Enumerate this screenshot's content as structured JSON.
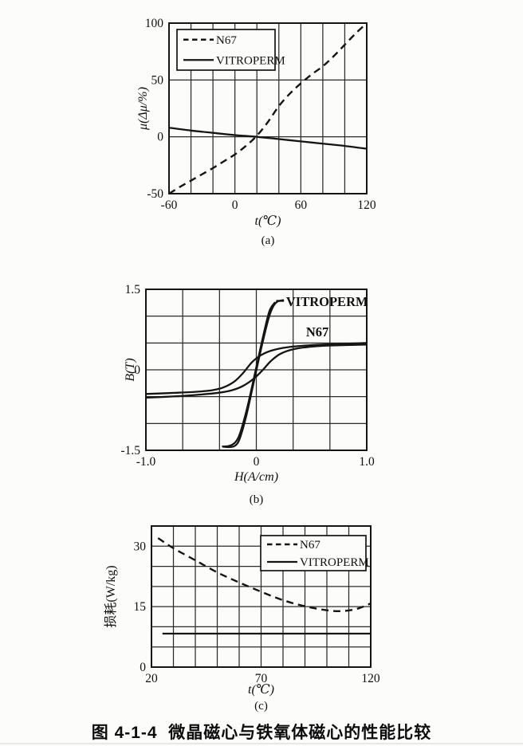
{
  "page": {
    "caption": "图 4-1-4  微晶磁心与铁氧体磁心的性能比较"
  },
  "colors": {
    "ink": "#151515",
    "background": "#fcfcfa"
  },
  "chart_data": [
    {
      "id": "a",
      "type": "line",
      "sublabel": "(a)",
      "xlabel": "t(℃)",
      "ylabel": "μ(Δμ/%)",
      "xlim": [
        -60,
        120
      ],
      "ylim": [
        -50,
        100
      ],
      "xgrid_step": 20,
      "ygrid_step": 50,
      "grid": true,
      "xticks": [
        {
          "v": -60,
          "label": "-60"
        },
        {
          "v": 0,
          "label": "0"
        },
        {
          "v": 60,
          "label": "60"
        },
        {
          "v": 120,
          "label": "120"
        }
      ],
      "yticks": [
        {
          "v": -50,
          "label": "-50"
        },
        {
          "v": 0,
          "label": "0"
        },
        {
          "v": 50,
          "label": "50"
        },
        {
          "v": 100,
          "label": "100"
        }
      ],
      "legend": {
        "position": "top-left",
        "entries": [
          {
            "name": "N67",
            "dash": true
          },
          {
            "name": "VITROPERM",
            "dash": false
          }
        ]
      },
      "series": [
        {
          "name": "N67",
          "dash": true,
          "points": [
            [
              -60,
              -50
            ],
            [
              -50,
              -44
            ],
            [
              -40,
              -38.5
            ],
            [
              -30,
              -33
            ],
            [
              -20,
              -27.5
            ],
            [
              -10,
              -21.5
            ],
            [
              0,
              -15.5
            ],
            [
              10,
              -8
            ],
            [
              20,
              1
            ],
            [
              30,
              13
            ],
            [
              40,
              27
            ],
            [
              50,
              38
            ],
            [
              60,
              47
            ],
            [
              70,
              55
            ],
            [
              80,
              62
            ],
            [
              90,
              71
            ],
            [
              100,
              81
            ],
            [
              110,
              91
            ],
            [
              120,
              100
            ]
          ]
        },
        {
          "name": "VITROPERM",
          "dash": false,
          "points": [
            [
              -60,
              8
            ],
            [
              -40,
              5.5
            ],
            [
              -20,
              3.5
            ],
            [
              0,
              1.5
            ],
            [
              20,
              0
            ],
            [
              40,
              -2
            ],
            [
              60,
              -4
            ],
            [
              80,
              -6
            ],
            [
              100,
              -8
            ],
            [
              120,
              -10.5
            ]
          ]
        }
      ]
    },
    {
      "id": "b",
      "type": "line",
      "sublabel": "(b)",
      "xlabel": "H(A/cm)",
      "ylabel": "B(T)",
      "xlim": [
        -1.0,
        1.0
      ],
      "ylim": [
        -1.5,
        1.5
      ],
      "xgrid_step": 0.3333333,
      "ygrid_step": 0.5,
      "grid": true,
      "xticks": [
        {
          "v": -1.0,
          "label": "-1.0"
        },
        {
          "v": 0,
          "label": "0"
        },
        {
          "v": 1.0,
          "label": "1.0"
        }
      ],
      "yticks": [
        {
          "v": -1.5,
          "label": "-1.5"
        },
        {
          "v": 0,
          "label": "0"
        },
        {
          "v": 1.5,
          "label": "1.5"
        }
      ],
      "annotations": [
        {
          "text": "VITROPERM",
          "x": 0.27,
          "y": 1.26,
          "leader": [
            0.18,
            1.285,
            0.25,
            1.285
          ]
        },
        {
          "text": "N67",
          "x": 0.45,
          "y": 0.7
        }
      ],
      "series": [
        {
          "name": "VITROPERM",
          "dash": false,
          "points": [
            [
              -0.31,
              -1.43
            ],
            [
              -0.24,
              -1.44
            ],
            [
              -0.19,
              -1.41
            ],
            [
              -0.15,
              -1.28
            ],
            [
              -0.09,
              -0.85
            ],
            [
              -0.02,
              -0.2
            ],
            [
              0.05,
              0.45
            ],
            [
              0.11,
              0.95
            ],
            [
              0.15,
              1.17
            ],
            [
              0.19,
              1.27
            ],
            [
              0.25,
              1.3
            ]
          ]
        },
        {
          "name": "VITROPERM",
          "dash": false,
          "points": [
            [
              0.17,
              1.26
            ],
            [
              0.12,
              1.1
            ],
            [
              0.07,
              0.7
            ],
            [
              0,
              0.05
            ],
            [
              -0.07,
              -0.6
            ],
            [
              -0.12,
              -1.0
            ],
            [
              -0.16,
              -1.25
            ],
            [
              -0.2,
              -1.37
            ],
            [
              -0.25,
              -1.42
            ],
            [
              -0.31,
              -1.43
            ]
          ]
        },
        {
          "name": "N67",
          "dash": false,
          "points": [
            [
              -1.0,
              -0.45
            ],
            [
              -0.75,
              -0.43
            ],
            [
              -0.55,
              -0.41
            ],
            [
              -0.4,
              -0.38
            ],
            [
              -0.3,
              -0.33
            ],
            [
              -0.2,
              -0.22
            ],
            [
              -0.12,
              -0.06
            ],
            [
              -0.04,
              0.14
            ],
            [
              0.04,
              0.27
            ],
            [
              0.14,
              0.36
            ],
            [
              0.28,
              0.42
            ],
            [
              0.5,
              0.46
            ],
            [
              0.75,
              0.48
            ],
            [
              1.0,
              0.5
            ]
          ]
        },
        {
          "name": "N67",
          "dash": false,
          "points": [
            [
              -1.0,
              -0.52
            ],
            [
              -0.7,
              -0.49
            ],
            [
              -0.5,
              -0.46
            ],
            [
              -0.35,
              -0.43
            ],
            [
              -0.22,
              -0.38
            ],
            [
              -0.12,
              -0.3
            ],
            [
              -0.02,
              -0.16
            ],
            [
              0.06,
              0
            ],
            [
              0.13,
              0.16
            ],
            [
              0.22,
              0.3
            ],
            [
              0.35,
              0.39
            ],
            [
              0.55,
              0.44
            ],
            [
              0.8,
              0.46
            ],
            [
              1.0,
              0.47
            ]
          ]
        }
      ]
    },
    {
      "id": "c",
      "type": "line",
      "sublabel": "(c)",
      "xlabel": "t(℃)",
      "ylabel": "损耗(W/kg)",
      "xlim": [
        20,
        120
      ],
      "ylim": [
        0,
        35
      ],
      "xgrid_step": 10,
      "ygrid_step": 5,
      "grid": true,
      "xticks": [
        {
          "v": 20,
          "label": "20"
        },
        {
          "v": 70,
          "label": "70"
        },
        {
          "v": 120,
          "label": "120"
        }
      ],
      "yticks": [
        {
          "v": 0,
          "label": "0"
        },
        {
          "v": 15,
          "label": "15"
        },
        {
          "v": 30,
          "label": "30"
        }
      ],
      "legend": {
        "position": "top-right",
        "entries": [
          {
            "name": "N67",
            "dash": true
          },
          {
            "name": "VITROPERM",
            "dash": false
          }
        ]
      },
      "series": [
        {
          "name": "N67",
          "dash": true,
          "points": [
            [
              23,
              32
            ],
            [
              30,
              29.5
            ],
            [
              40,
              26.5
            ],
            [
              50,
              23.5
            ],
            [
              60,
              21
            ],
            [
              70,
              18.7
            ],
            [
              80,
              16.6
            ],
            [
              90,
              15.1
            ],
            [
              100,
              14.1
            ],
            [
              107,
              13.9
            ],
            [
              114,
              14.5
            ],
            [
              120,
              15.8
            ]
          ]
        },
        {
          "name": "VITROPERM",
          "dash": false,
          "points": [
            [
              25,
              8.3
            ],
            [
              70,
              8.3
            ],
            [
              120,
              8.3
            ]
          ]
        }
      ]
    }
  ]
}
